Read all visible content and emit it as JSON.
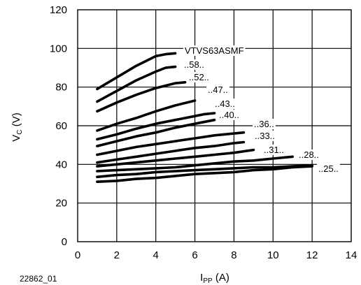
{
  "figure_id": "22862_01",
  "chart_data": {
    "type": "line",
    "title": "",
    "xlabel": {
      "main": "I",
      "sub": "PP",
      "unit": " (A)"
    },
    "ylabel": {
      "main": "V",
      "sub": "C",
      "unit": " (V)"
    },
    "xlim": [
      0,
      14
    ],
    "ylim": [
      0,
      120
    ],
    "xticks": [
      0,
      2,
      4,
      6,
      8,
      10,
      12,
      14
    ],
    "yticks": [
      0,
      20,
      40,
      60,
      80,
      100,
      120
    ],
    "grid": true,
    "series": [
      {
        "name": "VTVS63ASMF",
        "x": [
          1,
          2,
          3,
          4,
          4.5,
          5
        ],
        "y": [
          79,
          85,
          91,
          96,
          97,
          97.5
        ]
      },
      {
        "name": "..58..",
        "x": [
          1,
          2,
          3,
          4,
          4.5,
          5
        ],
        "y": [
          72.5,
          78,
          83.5,
          88,
          90,
          90.5
        ]
      },
      {
        "name": "..52..",
        "x": [
          1,
          2,
          3,
          4,
          5,
          5.5
        ],
        "y": [
          67.5,
          72,
          76,
          79.5,
          82,
          82.5
        ]
      },
      {
        "name": "..47..",
        "x": [
          1,
          2,
          3,
          4,
          5,
          6
        ],
        "y": [
          57.5,
          61,
          64,
          67.5,
          70.5,
          73
        ]
      },
      {
        "name": "..43..",
        "x": [
          1,
          2,
          3,
          4,
          5,
          6,
          6.5,
          7
        ],
        "y": [
          53,
          55.5,
          58.5,
          61,
          63,
          65,
          66,
          66.5
        ]
      },
      {
        "name": "..40..",
        "x": [
          1,
          2,
          3,
          4,
          5,
          6,
          7
        ],
        "y": [
          49.5,
          52,
          54.5,
          56.5,
          59,
          61,
          63
        ]
      },
      {
        "name": "..36..",
        "x": [
          1,
          2,
          3,
          4,
          5,
          6,
          7,
          8,
          8.5
        ],
        "y": [
          45,
          47,
          49,
          50.5,
          52,
          53.5,
          55,
          56,
          56.5
        ]
      },
      {
        "name": "..33..",
        "x": [
          1,
          2,
          3,
          4,
          5,
          6,
          7,
          8,
          8.5
        ],
        "y": [
          41,
          42.5,
          44,
          45.5,
          47,
          48.5,
          49.5,
          51,
          51.5
        ]
      },
      {
        "name": "..31..",
        "x": [
          1,
          2,
          3,
          4,
          5,
          6,
          7,
          8,
          9
        ],
        "y": [
          39,
          40,
          41,
          42,
          43,
          44,
          45,
          46,
          47.5
        ]
      },
      {
        "name": "..28..",
        "x": [
          1,
          2,
          3,
          4,
          5,
          6,
          7,
          8,
          9,
          10,
          11
        ],
        "y": [
          36.5,
          37,
          37.5,
          38,
          38.5,
          39.5,
          40.5,
          41.5,
          42,
          43,
          44
        ]
      },
      {
        "name": "..25..",
        "x": [
          1,
          2,
          3,
          4,
          5,
          6,
          7,
          8,
          9,
          10,
          11,
          12
        ],
        "y": [
          33.5,
          34.5,
          35,
          36,
          36.5,
          37,
          37.5,
          38,
          38.5,
          38.5,
          39,
          39.5
        ]
      },
      {
        "name": "",
        "x": [
          1,
          2,
          3,
          4,
          5,
          6,
          7,
          8,
          9,
          10,
          11,
          12
        ],
        "y": [
          31,
          31.5,
          32.5,
          33,
          34,
          35,
          35.5,
          36,
          37,
          37.5,
          38.5,
          39
        ]
      }
    ]
  }
}
